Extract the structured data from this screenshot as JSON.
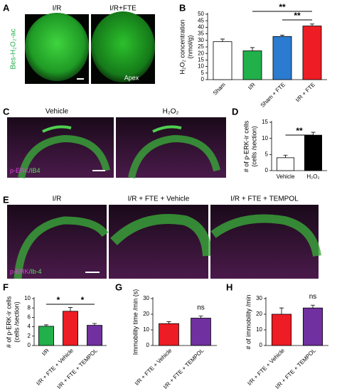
{
  "images": {
    "A": {
      "panel": "A",
      "labels": [
        "I/R",
        "I/R+FTE"
      ],
      "stain": "Bes-H₂O₂-ac",
      "note": "Apex"
    },
    "C": {
      "panel": "C",
      "labels": [
        "Vehicle",
        "H₂O₂"
      ],
      "stain": [
        "p-ERK",
        "/IB4"
      ]
    },
    "E": {
      "panel": "E",
      "labels": [
        "I/R",
        "I/R + FTE + Vehicle",
        "I/R + FTE + TEMPOL"
      ],
      "stain": [
        "p-ERK",
        "/Ib-4"
      ]
    }
  },
  "chart_data": [
    {
      "type": "bar",
      "panel": "B",
      "ylabel": [
        "H₂O₂ concentration",
        "(nmol/g)"
      ],
      "categories": [
        "Sham",
        "I/R",
        "Sham + FTE",
        "I/R + FTE"
      ],
      "values": [
        29,
        22,
        33,
        41
      ],
      "errors": [
        2,
        2.5,
        1,
        1.5
      ],
      "colors": [
        "#ffffff",
        "#22b04b",
        "#2b7bd0",
        "#ee1c24"
      ],
      "ylim": [
        0,
        50
      ],
      "yticks": [
        0,
        5,
        10,
        15,
        20,
        25,
        30,
        35,
        40,
        45,
        50
      ],
      "annotations": [
        "**",
        "**"
      ]
    },
    {
      "type": "bar",
      "panel": "D",
      "ylabel": [
        "# of p-ERK-ir cells",
        "(cells /section)"
      ],
      "categories": [
        "Vehicle",
        "H₂O₂"
      ],
      "values": [
        4,
        11
      ],
      "errors": [
        0.8,
        0.9
      ],
      "colors": [
        "#ffffff",
        "#000000"
      ],
      "ylim": [
        0,
        15
      ],
      "yticks": [
        0,
        5,
        10,
        15
      ],
      "annotations": [
        "**"
      ]
    },
    {
      "type": "bar",
      "panel": "F",
      "ylabel": [
        "# of p-ERK-ir cells",
        "(cells /section)"
      ],
      "categories": [
        "I/R",
        "I/R + FTE + Vehicle",
        "I/R + FTE + TEMPOL"
      ],
      "values": [
        4.1,
        7.3,
        4.3
      ],
      "errors": [
        0.3,
        0.8,
        0.4
      ],
      "colors": [
        "#22b04b",
        "#ee1c24",
        "#7030a0"
      ],
      "ylim": [
        0,
        10
      ],
      "yticks": [
        0,
        2,
        4,
        6,
        8,
        10
      ],
      "annotations": [
        "*",
        "*"
      ]
    },
    {
      "type": "bar",
      "panel": "G",
      "ylabel": [
        "Immobility time /min (s)"
      ],
      "categories": [
        "I/R + FTE + Vehicle",
        "I/R + FTE + TEMPOL"
      ],
      "values": [
        14,
        17.5
      ],
      "errors": [
        1.2,
        1.3
      ],
      "colors": [
        "#ee1c24",
        "#7030a0"
      ],
      "ylim": [
        0,
        30
      ],
      "yticks": [
        0,
        10,
        20,
        30
      ],
      "annotations": [
        "ns"
      ]
    },
    {
      "type": "bar",
      "panel": "H",
      "ylabel": [
        "# of immobility /min"
      ],
      "categories": [
        "I/R + FTE + Vehicle",
        "I/R + FTE + TEMPOL"
      ],
      "values": [
        20,
        24
      ],
      "errors": [
        4,
        1.8
      ],
      "colors": [
        "#ee1c24",
        "#7030a0"
      ],
      "ylim": [
        0,
        30
      ],
      "yticks": [
        0,
        10,
        20,
        30
      ],
      "annotations": [
        "ns"
      ]
    }
  ]
}
